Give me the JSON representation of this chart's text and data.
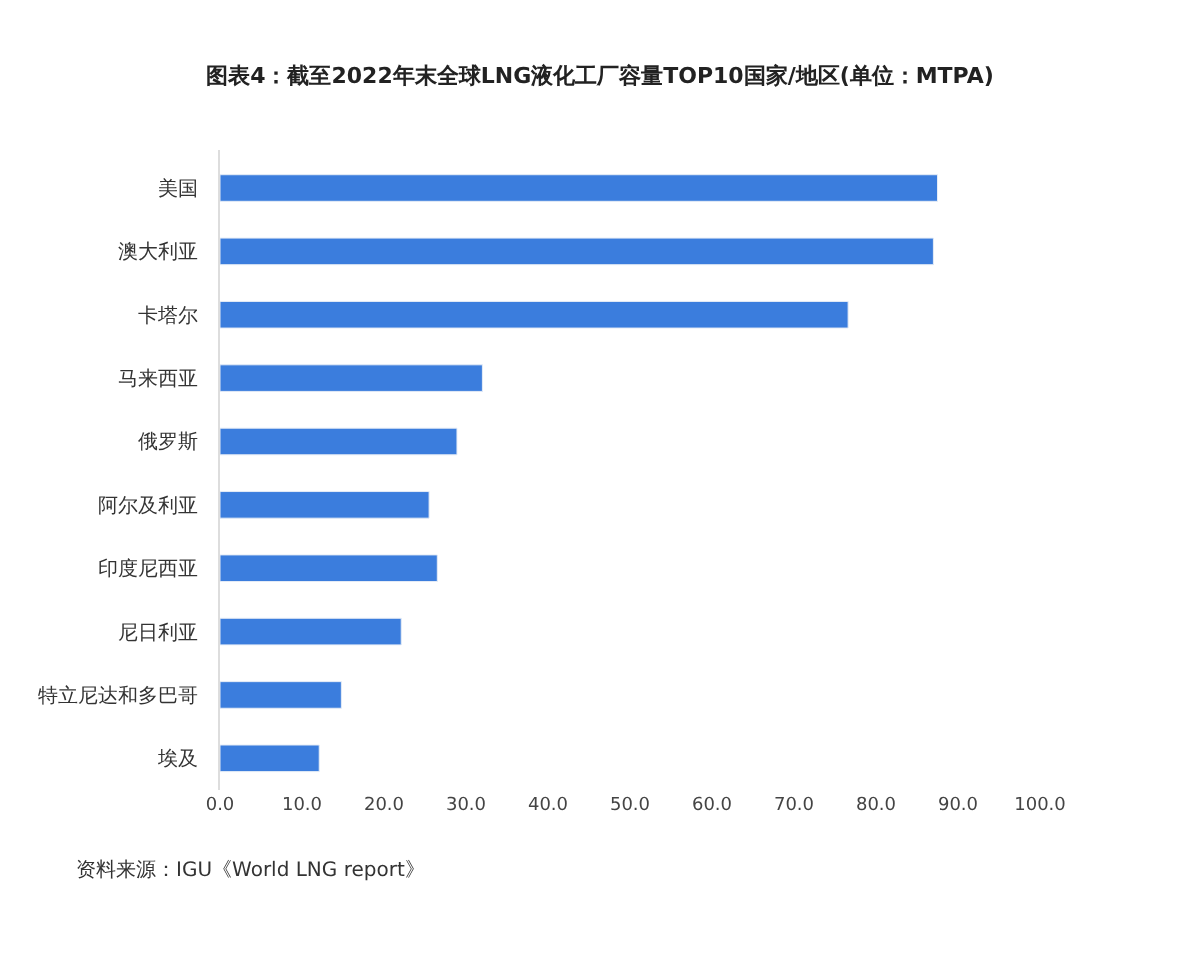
{
  "chart_data": {
    "type": "bar",
    "orientation": "horizontal",
    "title": "图表4：截至2022年末全球LNG液化工厂容量TOP10国家/地区(单位：MTPA)",
    "categories": [
      "美国",
      "澳大利亚",
      "卡塔尔",
      "马来西亚",
      "俄罗斯",
      "阿尔及利亚",
      "印度尼西亚",
      "尼日利亚",
      "特立尼达和多巴哥",
      "埃及"
    ],
    "values": [
      87.5,
      87.0,
      76.6,
      32.0,
      28.9,
      25.5,
      26.5,
      22.1,
      14.8,
      12.1
    ],
    "color": "#3b7ddd",
    "xlim": [
      0,
      100
    ],
    "xticks": [
      {
        "value": 0,
        "label": "0.0"
      },
      {
        "value": 10,
        "label": "10.0"
      },
      {
        "value": 20,
        "label": "20.0"
      },
      {
        "value": 30,
        "label": "30.0"
      },
      {
        "value": 40,
        "label": "40.0"
      },
      {
        "value": 50,
        "label": "50.0"
      },
      {
        "value": 60,
        "label": "60.0"
      },
      {
        "value": 70,
        "label": "70.0"
      },
      {
        "value": 80,
        "label": "80.0"
      },
      {
        "value": 90,
        "label": "90.0"
      },
      {
        "value": 100,
        "label": "100.0"
      }
    ],
    "grid": false,
    "legend": false,
    "annotations": [
      "资料来源：IGU《World LNG report》"
    ]
  }
}
